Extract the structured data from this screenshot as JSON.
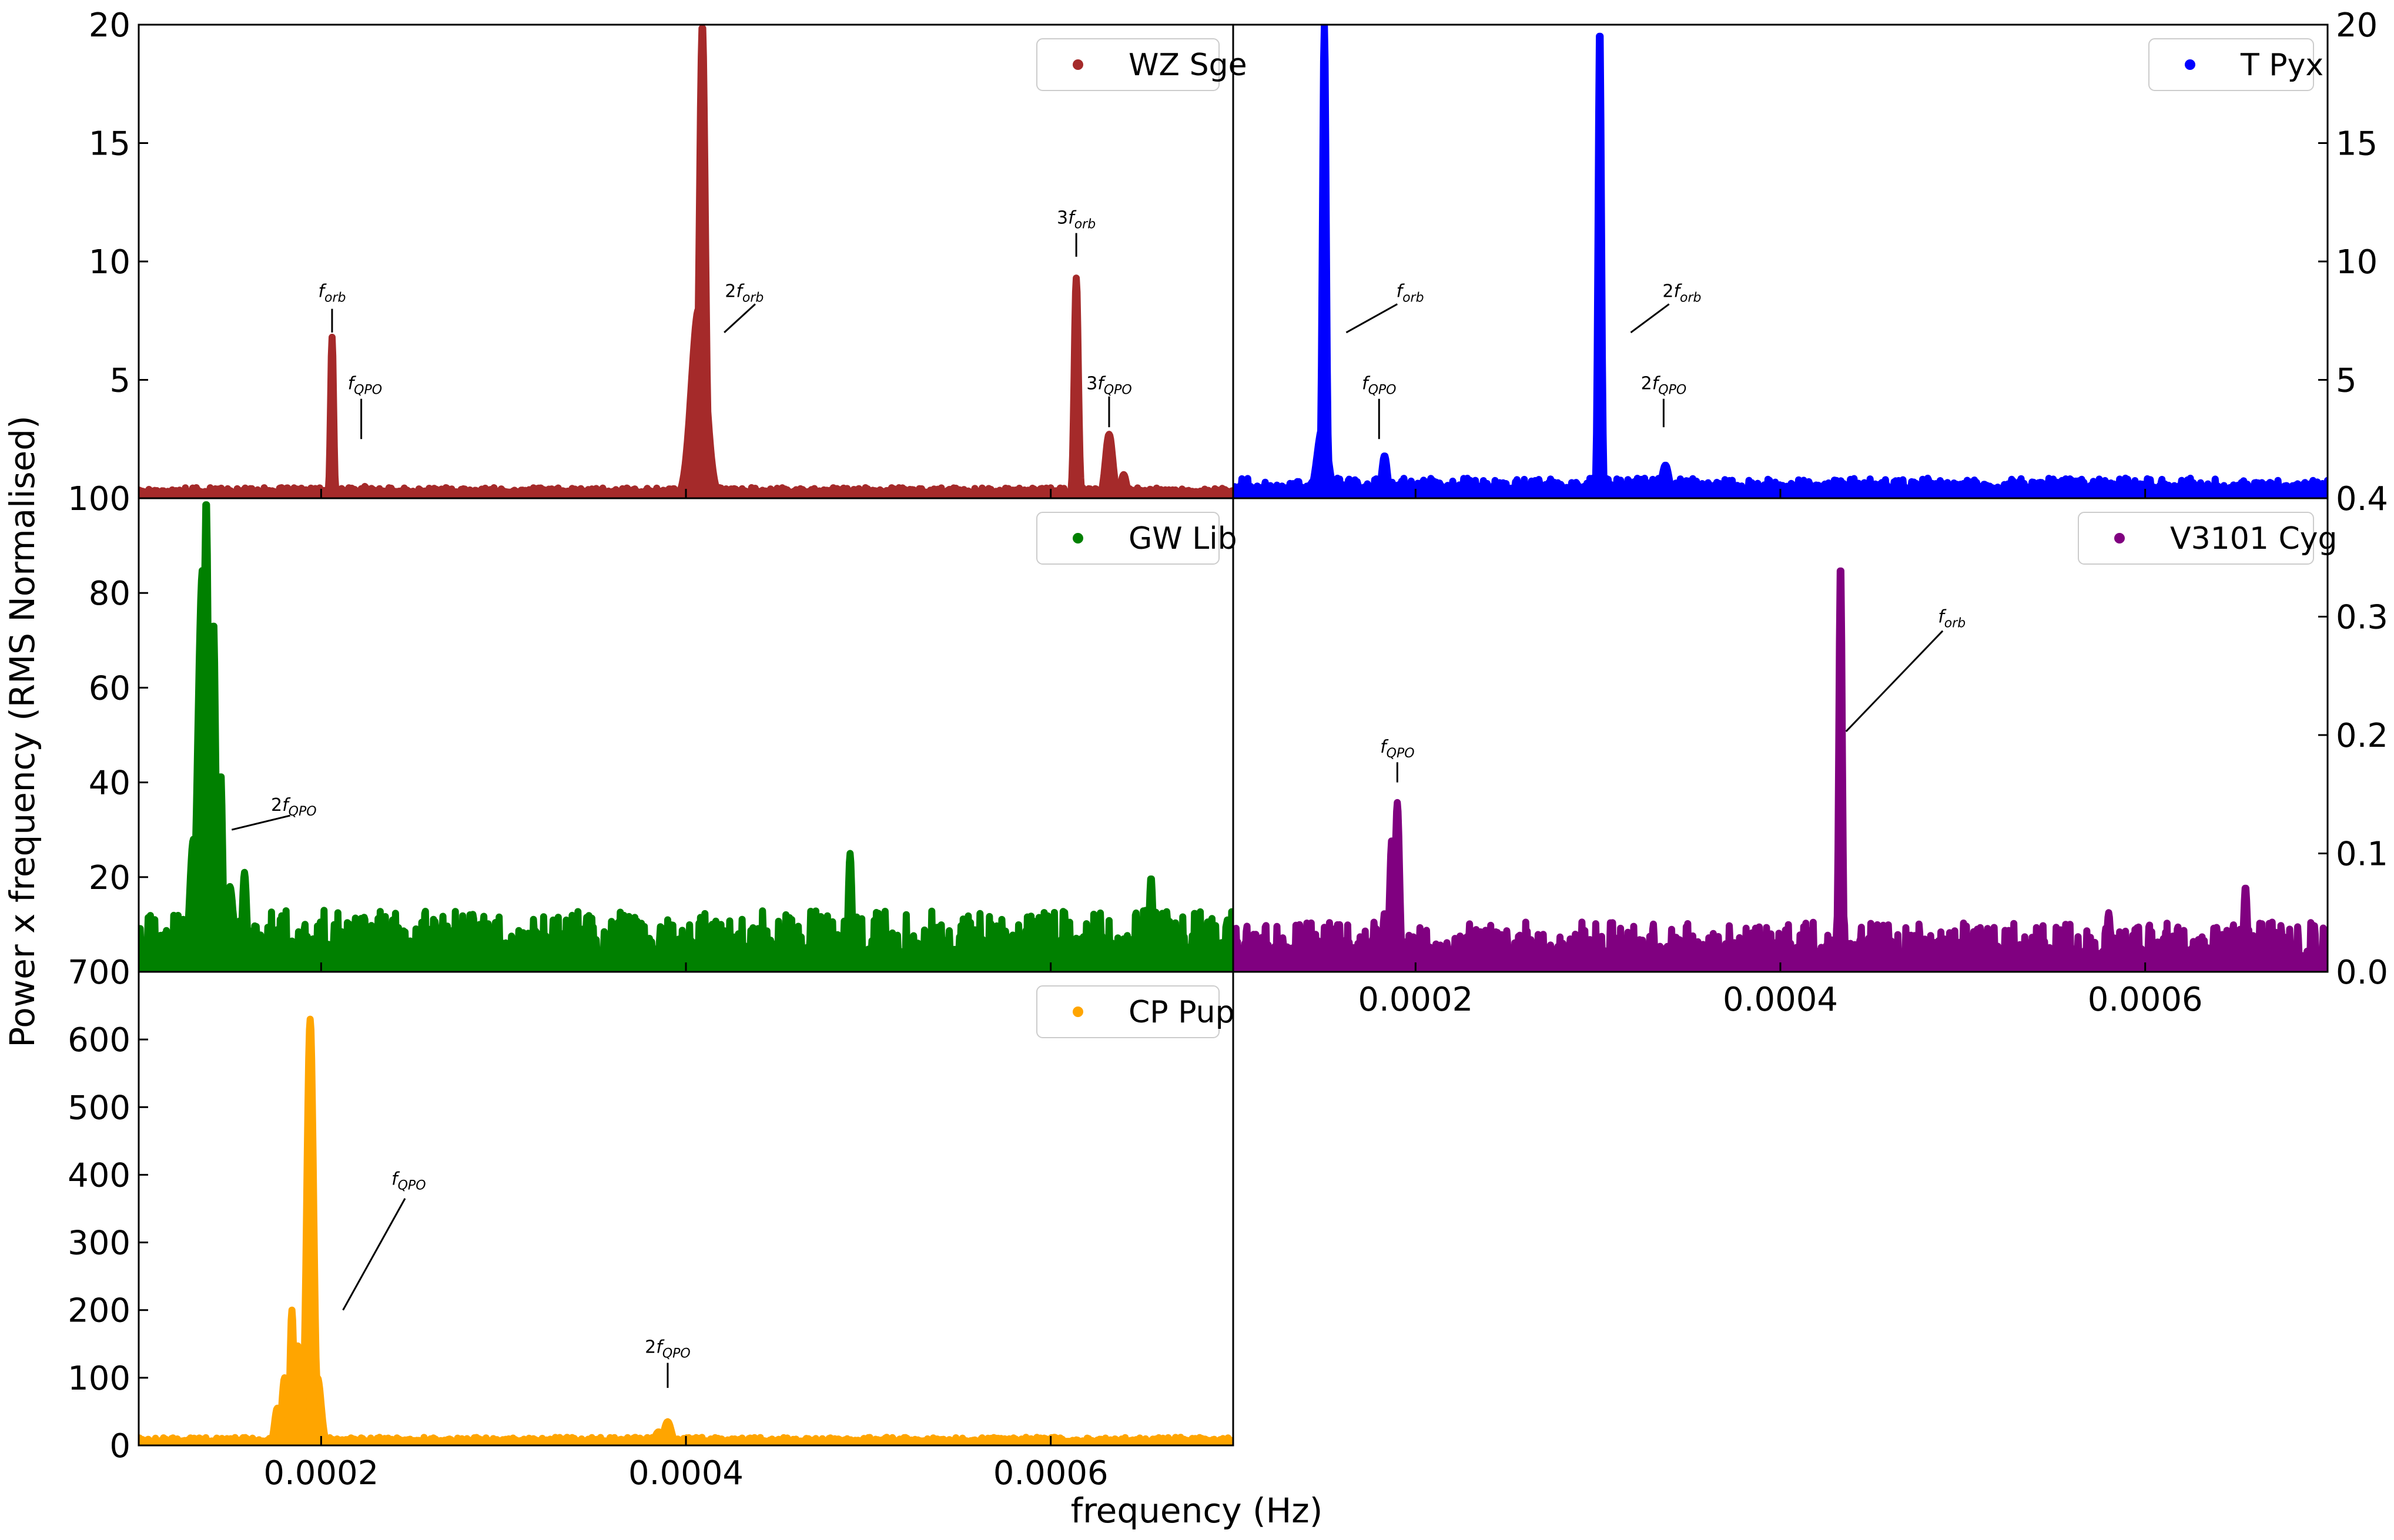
{
  "figure": {
    "ylabel": "Power x frequency (RMS Normalised)",
    "xlabel": "frequency (Hz)"
  },
  "chart_data": [
    {
      "id": "wz-sge",
      "type": "scatter",
      "series": [
        {
          "name": "WZ Sge",
          "color": "#a52a2a"
        }
      ],
      "xlim": [
        0.0001,
        0.0007
      ],
      "ylim": [
        0,
        20
      ],
      "yticks": [
        {
          "value": 5,
          "label": "5"
        },
        {
          "value": 10,
          "label": "10"
        },
        {
          "value": 15,
          "label": "15"
        },
        {
          "value": 20,
          "label": "20"
        }
      ],
      "ytick_side": "left",
      "legend_position": "top-right",
      "baseline": 0.25,
      "noise": 0.2,
      "peaks": [
        {
          "x": 0.000206,
          "y": 6.8,
          "width": 8e-07
        },
        {
          "x": 0.000224,
          "y": 0.5,
          "width": 1e-06
        },
        {
          "x": 0.000409,
          "y": 20,
          "width": 1.6e-06
        },
        {
          "x": 0.000407,
          "y": 8.0,
          "width": 4e-06
        },
        {
          "x": 0.000614,
          "y": 9.3,
          "width": 1.1e-06
        },
        {
          "x": 0.000632,
          "y": 2.7,
          "width": 2e-06
        },
        {
          "x": 0.00064,
          "y": 1.0,
          "width": 1.5e-06
        }
      ],
      "annotations": [
        {
          "label": "f",
          "sub": "orb",
          "x": 0.000206,
          "y": 8.5,
          "line": [
            [
              0.000206,
              8.0
            ],
            [
              0.000206,
              7.0
            ]
          ]
        },
        {
          "label": "f",
          "sub": "QPO",
          "x": 0.000224,
          "y": 4.6,
          "line": [
            [
              0.000222,
              4.2
            ],
            [
              0.000222,
              2.5
            ]
          ]
        },
        {
          "label": "2f",
          "sub": "orb",
          "x": 0.000432,
          "y": 8.5,
          "line": [
            [
              0.000438,
              8.2
            ],
            [
              0.000421,
              7.0
            ]
          ]
        },
        {
          "label": "3f",
          "sub": "orb",
          "x": 0.000614,
          "y": 11.6,
          "line": [
            [
              0.000614,
              11.2
            ],
            [
              0.000614,
              10.2
            ]
          ]
        },
        {
          "label": "3f",
          "sub": "QPO",
          "x": 0.000632,
          "y": 4.6,
          "line": [
            [
              0.000632,
              4.3
            ],
            [
              0.000632,
              3.0
            ]
          ]
        }
      ]
    },
    {
      "id": "t-pyx",
      "type": "scatter",
      "series": [
        {
          "name": "T Pyx",
          "color": "#0000ff"
        }
      ],
      "xlim": [
        0.0001,
        0.0007
      ],
      "ylim": [
        0,
        20
      ],
      "yticks": [
        {
          "value": 5,
          "label": "5"
        },
        {
          "value": 10,
          "label": "10"
        },
        {
          "value": 15,
          "label": "15"
        },
        {
          "value": 20,
          "label": "20"
        }
      ],
      "ytick_side": "right",
      "legend_position": "top-right",
      "baseline": 0.4,
      "noise": 0.45,
      "peaks": [
        {
          "x": 0.00015,
          "y": 20,
          "width": 1e-06
        },
        {
          "x": 0.000149,
          "y": 3.0,
          "width": 3e-06
        },
        {
          "x": 0.000183,
          "y": 1.8,
          "width": 1.5e-06
        },
        {
          "x": 0.000301,
          "y": 20,
          "width": 9e-07
        },
        {
          "x": 0.000337,
          "y": 1.4,
          "width": 2e-06
        }
      ],
      "annotations": [
        {
          "label": "f",
          "sub": "orb",
          "x": 0.000197,
          "y": 8.5,
          "line": [
            [
              0.00019,
              8.2
            ],
            [
              0.000162,
              7.0
            ]
          ]
        },
        {
          "label": "f",
          "sub": "QPO",
          "x": 0.00018,
          "y": 4.6,
          "line": [
            [
              0.00018,
              4.2
            ],
            [
              0.00018,
              2.5
            ]
          ]
        },
        {
          "label": "2f",
          "sub": "orb",
          "x": 0.000346,
          "y": 8.5,
          "line": [
            [
              0.000339,
              8.2
            ],
            [
              0.000318,
              7.0
            ]
          ]
        },
        {
          "label": "2f",
          "sub": "QPO",
          "x": 0.000336,
          "y": 4.6,
          "line": [
            [
              0.000336,
              4.2
            ],
            [
              0.000336,
              3.0
            ]
          ]
        }
      ]
    },
    {
      "id": "gw-lib",
      "type": "scatter",
      "series": [
        {
          "name": "GW Lib",
          "color": "#008000"
        }
      ],
      "xlim": [
        0.0001,
        0.0007
      ],
      "ylim": [
        0,
        100
      ],
      "yticks": [
        {
          "value": 20,
          "label": "20"
        },
        {
          "value": 40,
          "label": "40"
        },
        {
          "value": 60,
          "label": "60"
        },
        {
          "value": 80,
          "label": "80"
        },
        {
          "value": 100,
          "label": "100"
        }
      ],
      "ytick_side": "left",
      "legend_position": "top-right",
      "baseline": 4,
      "noise": 9,
      "peaks": [
        {
          "x": 0.000137,
          "y": 100,
          "width": 1.2e-06
        },
        {
          "x": 0.000135,
          "y": 85,
          "width": 2.5e-06
        },
        {
          "x": 0.000141,
          "y": 74,
          "width": 1.2e-06
        },
        {
          "x": 0.000145,
          "y": 42,
          "width": 1e-06
        },
        {
          "x": 0.00013,
          "y": 28,
          "width": 2e-06
        },
        {
          "x": 0.00015,
          "y": 18,
          "width": 2e-06
        },
        {
          "x": 0.000158,
          "y": 21,
          "width": 1.2e-06
        },
        {
          "x": 0.00049,
          "y": 25,
          "width": 1e-06
        },
        {
          "x": 0.000655,
          "y": 20,
          "width": 1e-06
        }
      ],
      "annotations": [
        {
          "label": "2f",
          "sub": "QPO",
          "x": 0.000185,
          "y": 34,
          "line": [
            [
              0.000183,
              33
            ],
            [
              0.000151,
              30
            ]
          ]
        }
      ]
    },
    {
      "id": "v3101-cyg",
      "type": "scatter",
      "series": [
        {
          "name": "V3101 Cyg",
          "color": "#800080"
        }
      ],
      "xlim": [
        0.0001,
        0.0007
      ],
      "ylim": [
        0,
        0.4
      ],
      "yticks": [
        {
          "value": 0.0,
          "label": "0.0"
        },
        {
          "value": 0.1,
          "label": "0.1"
        },
        {
          "value": 0.2,
          "label": "0.2"
        },
        {
          "value": 0.3,
          "label": "0.3"
        },
        {
          "value": 0.4,
          "label": "0.4"
        }
      ],
      "xticks": [
        {
          "value": 0.0002,
          "label": "0.0002"
        },
        {
          "value": 0.0004,
          "label": "0.0004"
        },
        {
          "value": 0.0006,
          "label": "0.0006"
        }
      ],
      "ytick_side": "right",
      "legend_position": "top-right",
      "baseline": 0.012,
      "noise": 0.03,
      "peaks": [
        {
          "x": 0.00019,
          "y": 0.143,
          "width": 1.2e-06
        },
        {
          "x": 0.000187,
          "y": 0.112,
          "width": 1.2e-06
        },
        {
          "x": 0.000183,
          "y": 0.05,
          "width": 1e-06
        },
        {
          "x": 0.000433,
          "y": 0.347,
          "width": 9e-07
        },
        {
          "x": 0.00058,
          "y": 0.05,
          "width": 1e-06
        },
        {
          "x": 0.000655,
          "y": 0.072,
          "width": 1e-06
        }
      ],
      "annotations": [
        {
          "label": "f",
          "sub": "QPO",
          "x": 0.00019,
          "y": 0.185,
          "line": [
            [
              0.00019,
              0.177
            ],
            [
              0.00019,
              0.16
            ]
          ]
        },
        {
          "label": "f",
          "sub": "orb",
          "x": 0.000494,
          "y": 0.295,
          "line": [
            [
              0.000489,
              0.288
            ],
            [
              0.000436,
              0.203
            ]
          ]
        }
      ]
    },
    {
      "id": "cp-pup",
      "type": "scatter",
      "series": [
        {
          "name": "CP Pup",
          "color": "#ffa500"
        }
      ],
      "xlim": [
        0.0001,
        0.0007
      ],
      "ylim": [
        0,
        700
      ],
      "yticks": [
        {
          "value": 0,
          "label": "0"
        },
        {
          "value": 100,
          "label": "100"
        },
        {
          "value": 200,
          "label": "200"
        },
        {
          "value": 300,
          "label": "300"
        },
        {
          "value": 400,
          "label": "400"
        },
        {
          "value": 500,
          "label": "500"
        },
        {
          "value": 600,
          "label": "600"
        },
        {
          "value": 700,
          "label": "700"
        }
      ],
      "xticks": [
        {
          "value": 0.0002,
          "label": "0.0002"
        },
        {
          "value": 0.0004,
          "label": "0.0004"
        },
        {
          "value": 0.0006,
          "label": "0.0006"
        }
      ],
      "ytick_side": "left",
      "legend_position": "top-right",
      "baseline": 6,
      "noise": 6,
      "peaks": [
        {
          "x": 0.000194,
          "y": 630,
          "width": 1.8e-06
        },
        {
          "x": 0.000198,
          "y": 100,
          "width": 2e-06
        },
        {
          "x": 0.000184,
          "y": 200,
          "width": 1e-06
        },
        {
          "x": 0.000187,
          "y": 150,
          "width": 1e-06
        },
        {
          "x": 0.00018,
          "y": 100,
          "width": 1.5e-06
        },
        {
          "x": 0.000176,
          "y": 55,
          "width": 1.5e-06
        },
        {
          "x": 0.00039,
          "y": 35,
          "width": 2e-06
        },
        {
          "x": 0.000385,
          "y": 20,
          "width": 2e-06
        },
        {
          "x": 0.00047,
          "y": 8,
          "width": 2e-06
        },
        {
          "x": 0.000602,
          "y": 12,
          "width": 2e-06
        }
      ],
      "annotations": [
        {
          "label": "f",
          "sub": "QPO",
          "x": 0.000248,
          "y": 385,
          "line": [
            [
              0.000246,
              365
            ],
            [
              0.000212,
              200
            ]
          ]
        },
        {
          "label": "2f",
          "sub": "QPO",
          "x": 0.00039,
          "y": 137,
          "line": [
            [
              0.00039,
              122
            ],
            [
              0.00039,
              85
            ]
          ]
        }
      ]
    }
  ]
}
